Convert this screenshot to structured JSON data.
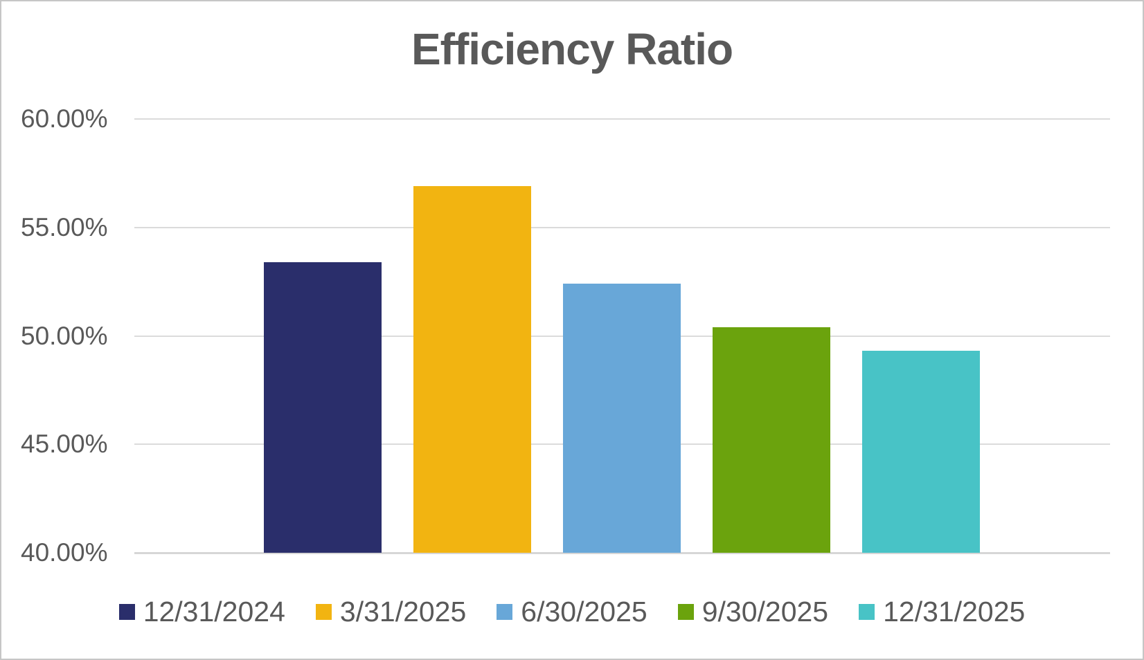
{
  "chart": {
    "title": "Efficiency Ratio"
  },
  "chart_data": {
    "type": "bar",
    "title": "Efficiency Ratio",
    "categories": [
      "12/31/2024",
      "3/31/2025",
      "6/30/2025",
      "9/30/2025",
      "12/31/2025"
    ],
    "values": [
      53.4,
      56.9,
      52.4,
      50.4,
      49.3
    ],
    "value_unit": "%",
    "colors": [
      "#2A2E6B",
      "#F2B411",
      "#68A7D8",
      "#6BA30D",
      "#48C3C6"
    ],
    "ylim": [
      40,
      60
    ],
    "yticks": [
      60,
      55,
      50,
      45,
      40
    ],
    "ytick_labels": [
      "60.00%",
      "55.00%",
      "50.00%",
      "45.00%",
      "40.00%"
    ],
    "xlabel": "",
    "ylabel": "",
    "grid": true,
    "legend_position": "bottom",
    "text_color": "#595959",
    "gridline_color": "#DBDBDB"
  }
}
